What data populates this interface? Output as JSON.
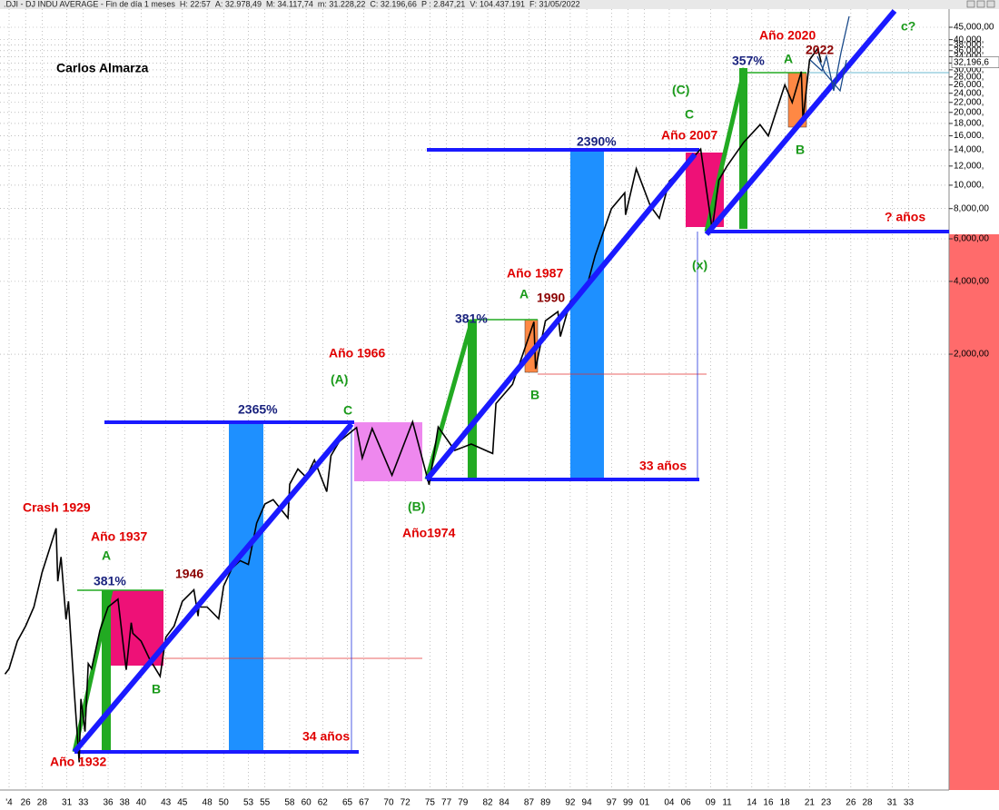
{
  "chart_data": {
    "type": "line",
    "title": ".DJI - DJ INDU AVERAGE - Fin de día 1 meses",
    "stats": [
      {
        "text": "H: 22:57",
        "color": "#222"
      },
      {
        "text": "A: 32.978,49",
        "color": "#222"
      },
      {
        "text": "M: 34.117,74",
        "color": "#222"
      },
      {
        "text": "m: 31.228,22",
        "color": "#222"
      },
      {
        "text": "C: 32.196,66",
        "color": "#222"
      },
      {
        "text": "P : 2.847,21",
        "color": "#e00000"
      },
      {
        "text": "V: 104.437.191",
        "color": "#222"
      },
      {
        "text": "F: 31/05/2022",
        "color": "#222"
      }
    ],
    "log_scale": true,
    "grid": true,
    "color": "#000000",
    "x": [
      1923.5,
      1924,
      1925,
      1926,
      1927,
      1928,
      1929.7,
      1929.9,
      1930.3,
      1930.9,
      1931.2,
      1931.9,
      1932.5,
      1932.7,
      1933.2,
      1933.6,
      1934,
      1935,
      1936,
      1937.2,
      1937.9,
      1938.2,
      1938.8,
      1939,
      1940,
      1941,
      1942.3,
      1943,
      1944,
      1945,
      1946.4,
      1946.9,
      1947,
      1948,
      1949.4,
      1950,
      1951,
      1952,
      1953,
      1954,
      1955,
      1956,
      1957.8,
      1958,
      1959,
      1960,
      1961,
      1962.5,
      1963,
      1964,
      1966.1,
      1966.8,
      1968,
      1970.4,
      1972.9,
      1974.9,
      1976,
      1978,
      1980,
      1982.6,
      1983,
      1985,
      1987.6,
      1987.8,
      1989,
      1990.5,
      1990.8,
      1992,
      1994,
      1995,
      1996,
      1997,
      1998.6,
      1998.7,
      2000,
      2001.7,
      2002.8,
      2004,
      2006,
      2007.8,
      2009.2,
      2010,
      2011,
      2013,
      2015,
      2016,
      2018,
      2018.9,
      2020.0,
      2020.2,
      2021,
      2022.0,
      2022.4
    ],
    "values": [
      95,
      100,
      130,
      150,
      180,
      250,
      381,
      230,
      290,
      160,
      190,
      80,
      41,
      75,
      55,
      105,
      100,
      144,
      180,
      194,
      120,
      99,
      155,
      140,
      130,
      110,
      93,
      135,
      150,
      190,
      212,
      165,
      180,
      180,
      161,
      220,
      260,
      280,
      270,
      400,
      480,
      500,
      420,
      580,
      670,
      620,
      730,
      540,
      760,
      870,
      995,
      744,
      985,
      631,
      1050,
      577,
      1000,
      800,
      850,
      777,
      1250,
      1500,
      2722,
      1739,
      2750,
      2999,
      2365,
      3300,
      3800,
      5100,
      6400,
      8000,
      9300,
      7540,
      11700,
      8200,
      7300,
      10400,
      12000,
      14100,
      6550,
      10500,
      12000,
      15000,
      17800,
      16000,
      26000,
      22000,
      29500,
      18600,
      33000,
      36800,
      32197
    ],
    "xlim": [
      1922.9,
      2037.9
    ],
    "xticks": [
      {
        "value": 1924,
        "label": "'4"
      },
      {
        "value": 1926,
        "label": "26"
      },
      {
        "value": 1928,
        "label": "28"
      },
      {
        "value": 1931,
        "label": "31"
      },
      {
        "value": 1933,
        "label": "33"
      },
      {
        "value": 1936,
        "label": "36"
      },
      {
        "value": 1938,
        "label": "38"
      },
      {
        "value": 1940,
        "label": "40"
      },
      {
        "value": 1943,
        "label": "43"
      },
      {
        "value": 1945,
        "label": "45"
      },
      {
        "value": 1948,
        "label": "48"
      },
      {
        "value": 1950,
        "label": "50"
      },
      {
        "value": 1953,
        "label": "53"
      },
      {
        "value": 1955,
        "label": "55"
      },
      {
        "value": 1958,
        "label": "58"
      },
      {
        "value": 1960,
        "label": "60"
      },
      {
        "value": 1962,
        "label": "62"
      },
      {
        "value": 1965,
        "label": "65"
      },
      {
        "value": 1967,
        "label": "67"
      },
      {
        "value": 1970,
        "label": "70"
      },
      {
        "value": 1972,
        "label": "72"
      },
      {
        "value": 1975,
        "label": "75"
      },
      {
        "value": 1977,
        "label": "77"
      },
      {
        "value": 1979,
        "label": "79"
      },
      {
        "value": 1982,
        "label": "82"
      },
      {
        "value": 1984,
        "label": "84"
      },
      {
        "value": 1987,
        "label": "87"
      },
      {
        "value": 1989,
        "label": "89"
      },
      {
        "value": 1992,
        "label": "92"
      },
      {
        "value": 1994,
        "label": "94"
      },
      {
        "value": 1997,
        "label": "97"
      },
      {
        "value": 1999,
        "label": "99"
      },
      {
        "value": 2001,
        "label": "01"
      },
      {
        "value": 2004,
        "label": "04"
      },
      {
        "value": 2006,
        "label": "06"
      },
      {
        "value": 2009,
        "label": "09"
      },
      {
        "value": 2011,
        "label": "11"
      },
      {
        "value": 2014,
        "label": "14"
      },
      {
        "value": 2016,
        "label": "16"
      },
      {
        "value": 2018,
        "label": "18"
      },
      {
        "value": 2021,
        "label": "21"
      },
      {
        "value": 2023,
        "label": "23"
      },
      {
        "value": 2026,
        "label": "26"
      },
      {
        "value": 2028,
        "label": "28"
      },
      {
        "value": 2031,
        "label": "31"
      },
      {
        "value": 2033,
        "label": "33"
      }
    ],
    "ylim": [
      31.5,
      53500
    ],
    "yticks": [
      {
        "value": 2000,
        "label": "2,000,00"
      },
      {
        "value": 4000,
        "label": "4,000,00"
      },
      {
        "value": 6000,
        "label": "6,000,00"
      },
      {
        "value": 8000,
        "label": "8,000,00"
      },
      {
        "value": 10000,
        "label": "10,000,"
      },
      {
        "value": 12000,
        "label": "12,000,"
      },
      {
        "value": 14000,
        "label": "14,000,"
      },
      {
        "value": 16000,
        "label": "16,000,"
      },
      {
        "value": 18000,
        "label": "18,000,"
      },
      {
        "value": 20000,
        "label": "20,000,"
      },
      {
        "value": 22000,
        "label": "22,000,"
      },
      {
        "value": 24000,
        "label": "24,000,"
      },
      {
        "value": 26000,
        "label": "26,000,"
      },
      {
        "value": 28000,
        "label": "28,000,"
      },
      {
        "value": 30000,
        "label": "30,000,"
      },
      {
        "value": 32000,
        "label": "32,000,"
      },
      {
        "value": 34000,
        "label": "34,000,"
      },
      {
        "value": 36000,
        "label": "36,000,"
      },
      {
        "value": 38000,
        "label": "38,000,"
      },
      {
        "value": 40000,
        "label": "40,000,"
      },
      {
        "value": 45000,
        "label": "45,000,00"
      }
    ],
    "last_price": {
      "value": 32196.66,
      "label": "32,196,6"
    },
    "annotations": [
      {
        "text": "Carlos Almarza",
        "color": "#000000"
      },
      {
        "text": "Crash 1929",
        "color": "#e00000"
      },
      {
        "text": "Año 1937",
        "color": "#e00000"
      },
      {
        "text": "A",
        "color": "#1a9a1a"
      },
      {
        "text": "381%",
        "color": "#1a237e"
      },
      {
        "text": "1946",
        "color": "#8b0000"
      },
      {
        "text": "B",
        "color": "#1a9a1a"
      },
      {
        "text": "Año 1932",
        "color": "#e00000"
      },
      {
        "text": "34 años",
        "color": "#e00000"
      },
      {
        "text": "2365%",
        "color": "#1a237e"
      },
      {
        "text": "Año 1966",
        "color": "#e00000"
      },
      {
        "text": "(A)",
        "color": "#1a9a1a"
      },
      {
        "text": "C",
        "color": "#1a9a1a"
      },
      {
        "text": "(B)",
        "color": "#1a9a1a"
      },
      {
        "text": "Año1974",
        "color": "#e00000"
      },
      {
        "text": "381%",
        "color": "#1a237e"
      },
      {
        "text": "Año 1987",
        "color": "#e00000"
      },
      {
        "text": "A",
        "color": "#1a9a1a"
      },
      {
        "text": "1990",
        "color": "#8b0000"
      },
      {
        "text": "B",
        "color": "#1a9a1a"
      },
      {
        "text": "33 años",
        "color": "#e00000"
      },
      {
        "text": "2390%",
        "color": "#1a237e"
      },
      {
        "text": "Año 2007",
        "color": "#e00000"
      },
      {
        "text": "(C)",
        "color": "#1a9a1a"
      },
      {
        "text": "C",
        "color": "#1a9a1a"
      },
      {
        "text": "(x)",
        "color": "#1a9a1a"
      },
      {
        "text": "357%",
        "color": "#1a237e"
      },
      {
        "text": "Año 2020",
        "color": "#e00000"
      },
      {
        "text": "A",
        "color": "#1a9a1a"
      },
      {
        "text": "2022",
        "color": "#8b0000"
      },
      {
        "text": "B",
        "color": "#1a9a1a"
      },
      {
        "text": "? años",
        "color": "#e00000"
      },
      {
        "text": "c?",
        "color": "#1a9a1a"
      }
    ]
  }
}
